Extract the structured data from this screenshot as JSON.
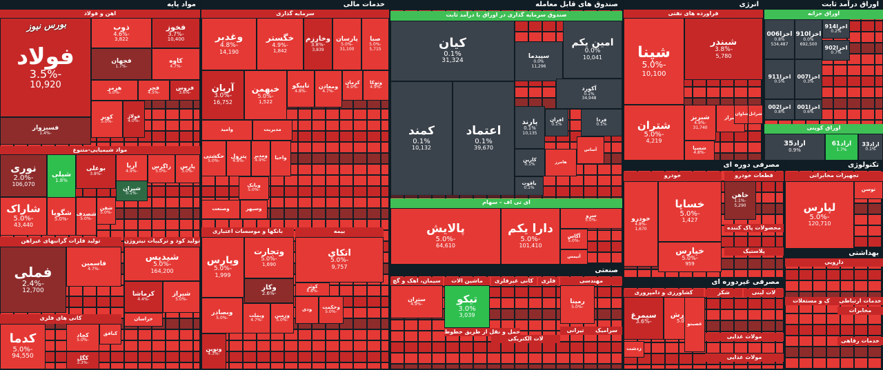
{
  "colors": {
    "neg_full": "#e53935",
    "neg_mid": "#c62828",
    "neg_dark": "#8e2c2c",
    "neutral": "#3a424b",
    "pos_light": "#2fbf4f",
    "pos_dark": "#2e6b45",
    "title_bg": "#1c2a33",
    "green_title": "#3fbf56"
  },
  "watermark": "بورس نیوز",
  "sectors": [
    {
      "title": "مواد پایه",
      "tiles": [
        {
          "name": "اهن و فولاد",
          "sub": true
        },
        {
          "name": "فولاد",
          "pct": "-3.5%",
          "val": "10,920"
        },
        {
          "name": "ذوب",
          "pct": "-4.6%",
          "val": "3,822"
        },
        {
          "name": "فخوز",
          "pct": "-3.7%",
          "val": "10,400"
        },
        {
          "name": "فجهان",
          "pct": "-1.7%"
        },
        {
          "name": "کاوه",
          "pct": "-4.7%"
        },
        {
          "name": "هرمز",
          "pct": "-5.0%"
        },
        {
          "name": "فجر",
          "pct": "-4.5%"
        },
        {
          "name": "فروس",
          "pct": "-3.6%"
        },
        {
          "name": "کویر",
          "pct": "-5.0%"
        },
        {
          "name": "فولاژ",
          "pct": "-4.0%"
        },
        {
          "name": "فسبزوار",
          "pct": "-1.4%"
        },
        {
          "name": "مواد شیمیایی-متنوع",
          "sub": true
        },
        {
          "name": "نوری",
          "pct": "-2.0%",
          "val": "106,070"
        },
        {
          "name": "شیلی",
          "pct": "1.8%"
        },
        {
          "name": "بوعلی",
          "pct": "-3.8%"
        },
        {
          "name": "آریا",
          "pct": "-4.9%"
        },
        {
          "name": "زاگرس",
          "pct": "-5.0%"
        },
        {
          "name": "پارس",
          "pct": "-5.0%"
        },
        {
          "name": "شیران",
          "pct": "-0.1%"
        },
        {
          "name": "شاراک",
          "pct": "-5.0%",
          "val": "43,440"
        },
        {
          "name": "شگویا",
          "pct": "-5.0%"
        },
        {
          "name": "شصدف",
          "pct": "-5.0%"
        },
        {
          "name": "شفن",
          "pct": "-5.0%"
        },
        {
          "name": "تولید فلزات گرانبهای غیراهن",
          "sub": true
        },
        {
          "name": "فملی",
          "pct": "-2.4%",
          "val": "12,700"
        },
        {
          "name": "فاسمین",
          "pct": "-4.7%"
        },
        {
          "name": "کانی های فلزی",
          "sub": true
        },
        {
          "name": "کدما",
          "pct": "-5.0%",
          "val": "94,550"
        },
        {
          "name": "کچاد",
          "pct": "-5.0%"
        },
        {
          "name": "کگل",
          "pct": "-3.3%"
        },
        {
          "name": "کبافق",
          "pct": ""
        },
        {
          "name": "تولید کود و ترکیبات نیتروژن",
          "sub": true
        },
        {
          "name": "شیدپس",
          "pct": "-5.0%",
          "val": "164,200"
        },
        {
          "name": "کرماشا",
          "pct": "-4.4%"
        },
        {
          "name": "شیراز",
          "pct": "-5.0%"
        },
        {
          "name": "خراسان",
          "pct": ""
        }
      ]
    },
    {
      "title": "خدمات مالی",
      "tiles": [
        {
          "name": "سرمایه گذاری",
          "sub": true
        },
        {
          "name": "وغدیر",
          "pct": "-4.8%",
          "val": "14,190"
        },
        {
          "name": "خگستر",
          "pct": "-4.9%",
          "val": "1,842"
        },
        {
          "name": "وخارزم",
          "pct": "-3.8%",
          "val": "3,839"
        },
        {
          "name": "پارسان",
          "pct": "-5.0%",
          "val": "31,100"
        },
        {
          "name": "صبا",
          "pct": "-5.0%",
          "val": "5,715"
        },
        {
          "name": "آریان",
          "pct": "-3.0%",
          "val": "16,752"
        },
        {
          "name": "خبهمن",
          "pct": "-5.0%",
          "val": "1,522"
        },
        {
          "name": "تاپیکو",
          "pct": "-4.8%"
        },
        {
          "name": "ومعادن",
          "pct": "-4.7%"
        },
        {
          "name": "کرمان",
          "pct": "-4.9%"
        },
        {
          "name": "وتوکا",
          "pct": "-4.9%"
        },
        {
          "name": "وامید",
          "pct": ""
        },
        {
          "name": "مدیریت",
          "pct": ""
        },
        {
          "name": "حکشتی",
          "pct": "-5.0%"
        },
        {
          "name": "پترول",
          "pct": "-4.8%"
        },
        {
          "name": "ومدیر",
          "pct": "-4.9%"
        },
        {
          "name": "واحیا",
          "pct": ""
        },
        {
          "name": "وبانک",
          "pct": "-5.0%"
        },
        {
          "name": "وصنعت",
          "pct": ""
        },
        {
          "name": "وسپهر",
          "pct": ""
        },
        {
          "name": "بانکها و موسسات اعتباری",
          "sub": true
        },
        {
          "name": "وپارس",
          "pct": "-5.0%",
          "val": "1,999"
        },
        {
          "name": "وتجارت",
          "pct": "-5.0%",
          "val": "1,690"
        },
        {
          "name": "وکار",
          "pct": "-2.6%"
        },
        {
          "name": "وبصادر",
          "pct": "-5.0%"
        },
        {
          "name": "وبملت",
          "pct": "-4.7%"
        },
        {
          "name": "وزمین",
          "pct": "-5.0%"
        },
        {
          "name": "ونوین",
          "pct": "-4.3%"
        },
        {
          "name": "بیمه",
          "sub": true
        },
        {
          "name": "اتکای",
          "pct": "-5.0%",
          "val": "9,757"
        },
        {
          "name": "کوثر",
          "pct": "-4.8%"
        },
        {
          "name": "وحکمت",
          "pct": "-5.0%"
        },
        {
          "name": "ودی",
          "pct": ""
        }
      ]
    },
    {
      "title": "صندوق های قابل معامله",
      "tiles": [
        {
          "name": "صندوق سرمایه گذاری در اوراق با درآمد ثابت",
          "sub": true
        },
        {
          "name": "کیان",
          "pct": "0.1%",
          "val": "31,324"
        },
        {
          "name": "امین یکم",
          "pct": "0.0%",
          "val": "10,041"
        },
        {
          "name": "سپیدما",
          "pct": "0.0%",
          "val": "11,296"
        },
        {
          "name": "آکورد",
          "pct": "0.1%",
          "val": "34,948"
        },
        {
          "name": "کمند",
          "pct": "0.1%",
          "val": "10,132"
        },
        {
          "name": "اعتماد",
          "pct": "0.1%",
          "val": "39,670"
        },
        {
          "name": "پارند",
          "pct": "0.1%",
          "val": "10,135"
        },
        {
          "name": "افران",
          "pct": "0.1%"
        },
        {
          "name": "فردا",
          "pct": "0.1%"
        },
        {
          "name": "آساس",
          "pct": ""
        },
        {
          "name": "کارین",
          "pct": "0.1%"
        },
        {
          "name": "هامرز",
          "pct": ""
        },
        {
          "name": "یاقوت",
          "pct": "0.1%"
        },
        {
          "name": "ای تی اف - سهام",
          "sub": true
        },
        {
          "name": "پالایش",
          "pct": "-5.0%",
          "val": "64,610"
        },
        {
          "name": "دارا یکم",
          "pct": "-5.0%",
          "val": "101,410"
        },
        {
          "name": "سرو",
          "pct": "-5.0%"
        },
        {
          "name": "آگاس",
          "pct": "-5.0%"
        },
        {
          "name": "آتیمس",
          "pct": ""
        }
      ]
    },
    {
      "title": "انرژی",
      "tiles": [
        {
          "name": "فراورده های نفتی",
          "sub": true
        },
        {
          "name": "شپنا",
          "pct": "-5.0%",
          "val": "10,100"
        },
        {
          "name": "شبندر",
          "pct": "-3.8%",
          "val": "5,780"
        },
        {
          "name": "شتران",
          "pct": "-5.0%",
          "val": "4,219"
        },
        {
          "name": "شبریز",
          "pct": "-4.9%",
          "val": "31,740"
        },
        {
          "name": "شسپا",
          "pct": "-4.8%"
        },
        {
          "name": "شراز",
          "pct": ""
        },
        {
          "name": "شاوان",
          "pct": ""
        },
        {
          "name": "شرانل",
          "pct": ""
        }
      ]
    },
    {
      "title": "اوراق درآمد ثابت",
      "tiles": [
        {
          "name": "اوراق خزانه",
          "sub": true
        },
        {
          "name": "اخزا006",
          "pct": "0.8%",
          "val": "534,487"
        },
        {
          "name": "اخزا910",
          "pct": "0.0%",
          "val": "692,500"
        },
        {
          "name": "اخزا914",
          "pct": "0.2%"
        },
        {
          "name": "اخزا902",
          "pct": "0.7%"
        },
        {
          "name": "اخزا911",
          "pct": "0.5%"
        },
        {
          "name": "اخزا007",
          "pct": "0.3%"
        },
        {
          "name": "اخزا002",
          "pct": "0.8%"
        },
        {
          "name": "اخزا001",
          "pct": "0.6%"
        },
        {
          "name": "اوراق کوپنی",
          "sub": true
        },
        {
          "name": "اراد35",
          "pct": "0.9%"
        },
        {
          "name": "اراد61",
          "pct": "1.7%"
        },
        {
          "name": "اراد33",
          "pct": "0.1%"
        }
      ]
    },
    {
      "title": "مصرفی دوره ای",
      "tiles": [
        {
          "name": "خودرو",
          "sub": true
        },
        {
          "name": "خساپا",
          "pct": "-5.0%",
          "val": "1,427"
        },
        {
          "name": "خودرو",
          "pct": "-4.8%",
          "val": "1,670"
        },
        {
          "name": "خپارس",
          "pct": "-5.0%",
          "val": "959"
        },
        {
          "name": "قطعات خودرو",
          "sub": true
        },
        {
          "name": "خاهن",
          "pct": "-1.1%",
          "val": "5,290"
        },
        {
          "name": "محصولات پاک کننده",
          "sub": true
        },
        {
          "name": "پلاستیک",
          "sub": true
        }
      ]
    },
    {
      "title": "تکنولوژی",
      "tiles": [
        {
          "name": "تجهیزات مخابراتی",
          "sub": true
        },
        {
          "name": "لپارس",
          "pct": "-5.0%",
          "val": "120,710"
        },
        {
          "name": "توسن",
          "pct": ""
        }
      ]
    },
    {
      "title": "صنعتی",
      "tiles": [
        {
          "name": "سیمان، اهک و گچ",
          "sub": true
        },
        {
          "name": "ستران",
          "pct": "-4.9%"
        },
        {
          "name": "ماشین الات",
          "sub": true
        },
        {
          "name": "تیکو",
          "pct": "3.0%",
          "val": "3,039"
        },
        {
          "name": "کانی غیرفلزی",
          "sub": true
        },
        {
          "name": "فلزی",
          "sub": true
        },
        {
          "name": "مهندسی",
          "sub": true
        },
        {
          "name": "رمپنا",
          "pct": "-5.0%"
        },
        {
          "name": "حمل و نقل از طریق خطوط راه آهن",
          "sub": true
        },
        {
          "name": "لات الکتریکی",
          "sub": true
        },
        {
          "name": "تیرانی",
          "sub": true
        },
        {
          "name": "سرامیک",
          "sub": true
        }
      ]
    },
    {
      "title": "مصرفی غیردوره ای",
      "tiles": [
        {
          "name": "کشاورزی و دامپروری",
          "sub": true
        },
        {
          "name": "سیمرغ",
          "pct": "-3.6%"
        },
        {
          "name": "غکورش",
          "pct": "-5.0%"
        },
        {
          "name": "غصینو",
          "pct": ""
        },
        {
          "name": "شکر",
          "sub": true
        },
        {
          "name": "لات لبنی",
          "sub": true
        },
        {
          "name": "مولات غذایی",
          "sub": true
        },
        {
          "name": "مولات غذایی",
          "sub": true
        },
        {
          "name": "زدشت",
          "pct": ""
        }
      ]
    },
    {
      "title": "بهداشتی",
      "tiles": [
        {
          "name": "دارویی",
          "sub": true
        },
        {
          "name": "ک و مستغلات",
          "sub": true
        },
        {
          "name": "خدمات ارتباطی",
          "sub": true
        },
        {
          "name": "مخابرات",
          "sub": true
        },
        {
          "name": "خدمات رفاهی",
          "sub": true
        }
      ]
    }
  ]
}
